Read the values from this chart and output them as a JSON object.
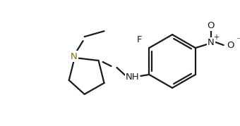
{
  "bg_color": "#ffffff",
  "line_color": "#1a1a1a",
  "N_color": "#8B7000",
  "bond_lw": 1.6,
  "figsize": [
    3.4,
    1.79
  ],
  "dpi": 100,
  "xlim": [
    0,
    340
  ],
  "ylim": [
    0,
    179
  ]
}
